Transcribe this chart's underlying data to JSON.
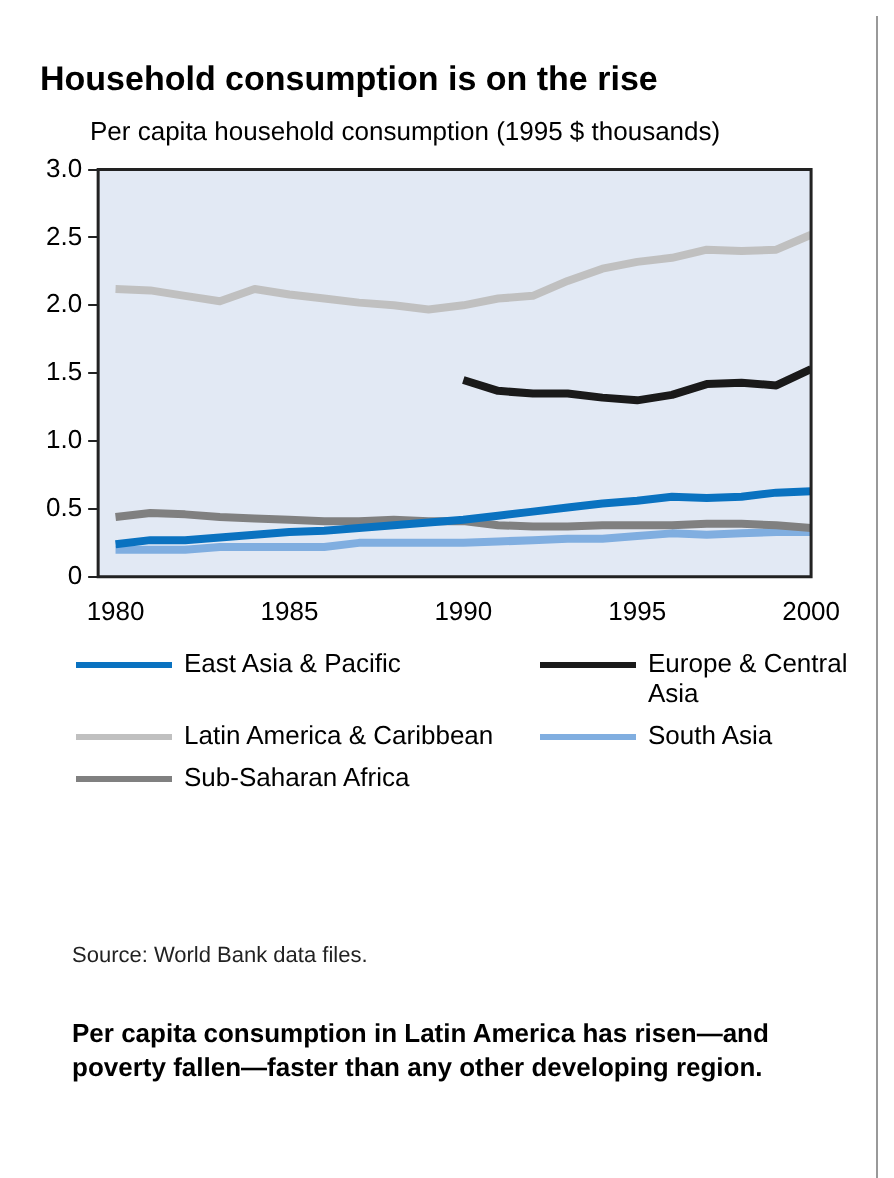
{
  "chart_data": {
    "type": "line",
    "title": "Household consumption is on the rise",
    "ylabel": "Per capita household consumption (1995 $ thousands)",
    "x": [
      1980,
      1981,
      1982,
      1983,
      1984,
      1985,
      1986,
      1987,
      1988,
      1989,
      1990,
      1991,
      1992,
      1993,
      1994,
      1995,
      1996,
      1997,
      1998,
      1999,
      2000
    ],
    "series": [
      {
        "name": "East Asia & Pacific",
        "color": "#0a72c0",
        "values": [
          0.24,
          0.27,
          0.27,
          0.29,
          0.31,
          0.33,
          0.34,
          0.36,
          0.38,
          0.4,
          0.42,
          0.45,
          0.48,
          0.51,
          0.54,
          0.56,
          0.59,
          0.58,
          0.59,
          0.62,
          0.63
        ]
      },
      {
        "name": "Europe & Central Asia",
        "color": "#1a1a1a",
        "values": [
          null,
          null,
          null,
          null,
          null,
          null,
          null,
          null,
          null,
          null,
          1.45,
          1.37,
          1.35,
          1.35,
          1.32,
          1.3,
          1.34,
          1.42,
          1.43,
          1.41,
          1.53
        ]
      },
      {
        "name": "Latin America & Caribbean",
        "color": "#c0c0c0",
        "values": [
          2.12,
          2.11,
          2.07,
          2.03,
          2.12,
          2.08,
          2.05,
          2.02,
          2.0,
          1.97,
          2.0,
          2.05,
          2.07,
          2.18,
          2.27,
          2.32,
          2.35,
          2.41,
          2.4,
          2.41,
          2.52
        ]
      },
      {
        "name": "Sub-Saharan Africa",
        "color": "#808080",
        "values": [
          0.44,
          0.47,
          0.46,
          0.44,
          0.43,
          0.42,
          0.41,
          0.41,
          0.42,
          0.41,
          0.41,
          0.38,
          0.37,
          0.37,
          0.38,
          0.38,
          0.38,
          0.39,
          0.39,
          0.38,
          0.36
        ]
      },
      {
        "name": "South Asia",
        "color": "#80aee0",
        "values": [
          0.2,
          0.2,
          0.2,
          0.22,
          0.22,
          0.22,
          0.22,
          0.25,
          0.25,
          0.25,
          0.25,
          0.26,
          0.27,
          0.28,
          0.28,
          0.3,
          0.32,
          0.31,
          0.32,
          0.33,
          0.33
        ]
      }
    ],
    "xlim": [
      1979.5,
      2000
    ],
    "xticks": [
      1980,
      1985,
      1990,
      1995,
      2000
    ],
    "ylim": [
      0,
      3
    ],
    "yticks": [
      0,
      {
        "value": 0.5,
        "label": "0.5"
      },
      {
        "value": 1,
        "label": "1.0"
      },
      {
        "value": 1.5,
        "label": "1.5"
      },
      {
        "value": 2,
        "label": "2.0"
      },
      {
        "value": 2.5,
        "label": "2.5"
      },
      {
        "value": 3,
        "label": "3.0"
      }
    ],
    "grid": false,
    "legend": "bottom",
    "marker": "none",
    "line_style": "solid",
    "annotations": [
      "Source:  World Bank data files.",
      "Per capita consumption in Latin America has risen—and poverty fallen—faster than any other developing region."
    ]
  }
}
